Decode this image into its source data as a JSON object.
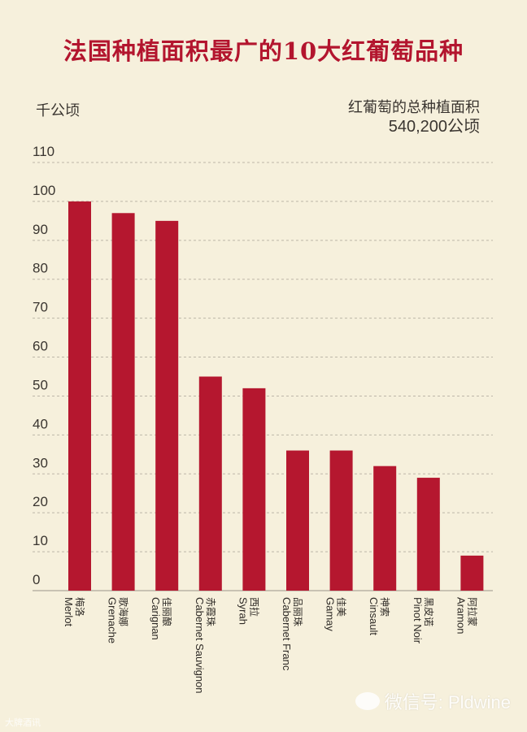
{
  "chart_data": {
    "type": "bar",
    "title": "法国种植面积最广的10大红葡萄品种",
    "ylabel": "千公顷",
    "annotation_line1": "红葡萄的总种植面积",
    "annotation_line2": "540,200公顷",
    "ylim": [
      0,
      110
    ],
    "yticks": [
      0,
      10,
      20,
      30,
      40,
      50,
      60,
      70,
      80,
      90,
      100,
      110
    ],
    "grid": true,
    "bar_color": "#b5172f",
    "categories": [
      {
        "zh": "梅洛",
        "en": "Merlot"
      },
      {
        "zh": "歌海娜",
        "en": "Grenache"
      },
      {
        "zh": "佳丽酿",
        "en": "Carignan"
      },
      {
        "zh": "赤霞珠",
        "en": "Cabernet Sauvignon"
      },
      {
        "zh": "西拉",
        "en": "Syrah"
      },
      {
        "zh": "品丽珠",
        "en": "Cabernet Franc"
      },
      {
        "zh": "佳美",
        "en": "Gamay"
      },
      {
        "zh": "神索",
        "en": "Cinsault"
      },
      {
        "zh": "黑皮诺",
        "en": "Pinot Noir"
      },
      {
        "zh": "阿拉蒙",
        "en": "Aramon"
      }
    ],
    "values": [
      100,
      97,
      95,
      55,
      52,
      36,
      36,
      32,
      29,
      9
    ]
  },
  "watermark": {
    "text": "微信号: Pldwine",
    "corner_text": "大牌酒讯"
  }
}
